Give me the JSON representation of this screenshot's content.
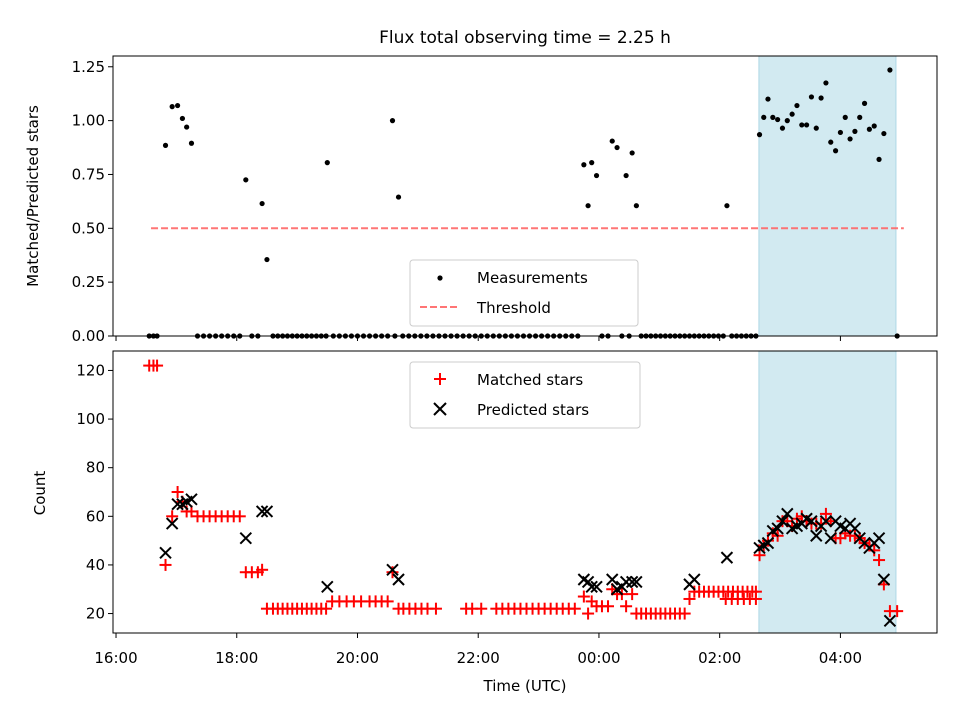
{
  "title": "Flux total observing time = 2.25 h",
  "x_ticks": [
    "16:00",
    "18:00",
    "20:00",
    "22:00",
    "00:00",
    "02:00",
    "04:00"
  ],
  "xlabel": "Time (UTC)",
  "chart_data": [
    {
      "type": "scatter",
      "panel": "top",
      "ylabel": "Matched/Predicted stars",
      "ylim": [
        0,
        1.3
      ],
      "y_ticks": [
        "0.00",
        "0.25",
        "0.50",
        "0.75",
        "1.00",
        "1.25"
      ],
      "x_unit": "hours since 16:00 UTC",
      "xlim": [
        -0.05,
        13.6
      ],
      "highlight_span": [
        10.65,
        12.92
      ],
      "threshold": {
        "value": 0.5,
        "x_range": [
          0.58,
          13.05
        ]
      },
      "legend": {
        "measurements": "Measurements",
        "threshold": "Threshold",
        "placement": "lower-center"
      },
      "measurements": [
        [
          0.55,
          0
        ],
        [
          0.62,
          0
        ],
        [
          0.68,
          0
        ],
        [
          0.82,
          0.885
        ],
        [
          0.93,
          1.065
        ],
        [
          1.02,
          1.07
        ],
        [
          1.1,
          1.01
        ],
        [
          1.17,
          0.97
        ],
        [
          1.25,
          0.895
        ],
        [
          1.35,
          0
        ],
        [
          1.45,
          0
        ],
        [
          1.55,
          0
        ],
        [
          1.65,
          0
        ],
        [
          1.75,
          0
        ],
        [
          1.85,
          0
        ],
        [
          1.95,
          0
        ],
        [
          2.05,
          0
        ],
        [
          2.15,
          0.725
        ],
        [
          2.25,
          0
        ],
        [
          2.35,
          0
        ],
        [
          2.42,
          0.615
        ],
        [
          2.5,
          0.355
        ],
        [
          2.6,
          0
        ],
        [
          2.68,
          0
        ],
        [
          2.76,
          0
        ],
        [
          2.84,
          0
        ],
        [
          2.92,
          0
        ],
        [
          3.0,
          0
        ],
        [
          3.08,
          0
        ],
        [
          3.16,
          0
        ],
        [
          3.24,
          0
        ],
        [
          3.32,
          0
        ],
        [
          3.4,
          0
        ],
        [
          3.48,
          0
        ],
        [
          3.5,
          0.805
        ],
        [
          3.6,
          0
        ],
        [
          3.7,
          0
        ],
        [
          3.8,
          0
        ],
        [
          3.9,
          0
        ],
        [
          4.0,
          0
        ],
        [
          4.1,
          0
        ],
        [
          4.2,
          0
        ],
        [
          4.3,
          0
        ],
        [
          4.4,
          0
        ],
        [
          4.5,
          0
        ],
        [
          4.58,
          1.0
        ],
        [
          4.62,
          0
        ],
        [
          4.68,
          0.645
        ],
        [
          4.75,
          0
        ],
        [
          4.85,
          0
        ],
        [
          4.95,
          0
        ],
        [
          5.05,
          0
        ],
        [
          5.15,
          0
        ],
        [
          5.25,
          0
        ],
        [
          5.35,
          0
        ],
        [
          5.45,
          0
        ],
        [
          5.55,
          0
        ],
        [
          5.65,
          0
        ],
        [
          5.75,
          0
        ],
        [
          5.85,
          0
        ],
        [
          5.95,
          0
        ],
        [
          6.05,
          0
        ],
        [
          6.15,
          0
        ],
        [
          6.25,
          0
        ],
        [
          6.35,
          0
        ],
        [
          6.45,
          0
        ],
        [
          6.55,
          0
        ],
        [
          6.65,
          0
        ],
        [
          6.75,
          0
        ],
        [
          6.85,
          0
        ],
        [
          6.95,
          0
        ],
        [
          7.05,
          0
        ],
        [
          7.15,
          0
        ],
        [
          7.25,
          0
        ],
        [
          7.35,
          0
        ],
        [
          7.45,
          0
        ],
        [
          7.55,
          0
        ],
        [
          7.65,
          0
        ],
        [
          7.75,
          0.795
        ],
        [
          7.82,
          0.605
        ],
        [
          7.88,
          0.805
        ],
        [
          7.96,
          0.745
        ],
        [
          8.05,
          0
        ],
        [
          8.15,
          0
        ],
        [
          8.22,
          0.905
        ],
        [
          8.3,
          0.875
        ],
        [
          8.38,
          0
        ],
        [
          8.45,
          0.745
        ],
        [
          8.5,
          0
        ],
        [
          8.55,
          0.85
        ],
        [
          8.62,
          0.605
        ],
        [
          8.7,
          0
        ],
        [
          8.78,
          0
        ],
        [
          8.86,
          0
        ],
        [
          8.94,
          0
        ],
        [
          9.02,
          0
        ],
        [
          9.1,
          0
        ],
        [
          9.18,
          0
        ],
        [
          9.26,
          0
        ],
        [
          9.34,
          0
        ],
        [
          9.42,
          0
        ],
        [
          9.5,
          0
        ],
        [
          9.58,
          0
        ],
        [
          9.66,
          0
        ],
        [
          9.74,
          0
        ],
        [
          9.82,
          0
        ],
        [
          9.9,
          0
        ],
        [
          9.98,
          0
        ],
        [
          10.06,
          0
        ],
        [
          10.12,
          0.605
        ],
        [
          10.2,
          0
        ],
        [
          10.28,
          0
        ],
        [
          10.36,
          0
        ],
        [
          10.44,
          0
        ],
        [
          10.52,
          0
        ],
        [
          10.6,
          0
        ],
        [
          10.66,
          0.935
        ],
        [
          10.73,
          1.015
        ],
        [
          10.8,
          1.1
        ],
        [
          10.88,
          1.015
        ],
        [
          10.96,
          1.005
        ],
        [
          11.04,
          0.965
        ],
        [
          11.12,
          1.0
        ],
        [
          11.2,
          1.03
        ],
        [
          11.28,
          1.07
        ],
        [
          11.36,
          0.98
        ],
        [
          11.44,
          0.98
        ],
        [
          11.52,
          1.11
        ],
        [
          11.6,
          0.965
        ],
        [
          11.68,
          1.105
        ],
        [
          11.76,
          1.175
        ],
        [
          11.84,
          0.9
        ],
        [
          11.92,
          0.86
        ],
        [
          12.0,
          0.945
        ],
        [
          12.08,
          1.015
        ],
        [
          12.16,
          0.915
        ],
        [
          12.24,
          0.95
        ],
        [
          12.32,
          1.015
        ],
        [
          12.4,
          1.08
        ],
        [
          12.48,
          0.96
        ],
        [
          12.56,
          0.975
        ],
        [
          12.64,
          0.82
        ],
        [
          12.72,
          0.94
        ],
        [
          12.82,
          1.235
        ],
        [
          12.94,
          0
        ]
      ]
    },
    {
      "type": "scatter",
      "panel": "bottom",
      "ylabel": "Count",
      "ylim": [
        12,
        128
      ],
      "y_ticks": [
        "20",
        "40",
        "60",
        "80",
        "100",
        "120"
      ],
      "highlight_span": [
        10.65,
        12.92
      ],
      "legend": {
        "matched": "Matched stars",
        "predicted": "Predicted stars",
        "placement": "upper-center"
      },
      "matched": [
        [
          0.55,
          122
        ],
        [
          0.62,
          122
        ],
        [
          0.68,
          122
        ],
        [
          0.82,
          40
        ],
        [
          0.93,
          60
        ],
        [
          1.02,
          70
        ],
        [
          1.1,
          66
        ],
        [
          1.17,
          62
        ],
        [
          1.25,
          62
        ],
        [
          1.35,
          60
        ],
        [
          1.45,
          60
        ],
        [
          1.55,
          60
        ],
        [
          1.65,
          60
        ],
        [
          1.75,
          60
        ],
        [
          1.85,
          60
        ],
        [
          1.95,
          60
        ],
        [
          2.05,
          60
        ],
        [
          2.15,
          37
        ],
        [
          2.25,
          37
        ],
        [
          2.35,
          37
        ],
        [
          2.42,
          38
        ],
        [
          2.5,
          22
        ],
        [
          2.6,
          22
        ],
        [
          2.68,
          22
        ],
        [
          2.76,
          22
        ],
        [
          2.84,
          22
        ],
        [
          2.92,
          22
        ],
        [
          3.0,
          22
        ],
        [
          3.08,
          22
        ],
        [
          3.16,
          22
        ],
        [
          3.24,
          22
        ],
        [
          3.32,
          22
        ],
        [
          3.4,
          22
        ],
        [
          3.48,
          22
        ],
        [
          3.58,
          25
        ],
        [
          3.7,
          25
        ],
        [
          3.82,
          25
        ],
        [
          3.94,
          25
        ],
        [
          4.06,
          25
        ],
        [
          4.2,
          25
        ],
        [
          4.3,
          25
        ],
        [
          4.4,
          25
        ],
        [
          4.5,
          25
        ],
        [
          4.58,
          37
        ],
        [
          4.68,
          22
        ],
        [
          4.76,
          22
        ],
        [
          4.86,
          22
        ],
        [
          4.96,
          22
        ],
        [
          5.06,
          22
        ],
        [
          5.16,
          22
        ],
        [
          5.3,
          22
        ],
        [
          5.8,
          22
        ],
        [
          5.9,
          22
        ],
        [
          6.05,
          22
        ],
        [
          6.3,
          22
        ],
        [
          6.4,
          22
        ],
        [
          6.5,
          22
        ],
        [
          6.6,
          22
        ],
        [
          6.7,
          22
        ],
        [
          6.8,
          22
        ],
        [
          6.9,
          22
        ],
        [
          7.0,
          22
        ],
        [
          7.1,
          22
        ],
        [
          7.2,
          22
        ],
        [
          7.3,
          22
        ],
        [
          7.4,
          22
        ],
        [
          7.5,
          22
        ],
        [
          7.6,
          22
        ],
        [
          7.75,
          27
        ],
        [
          7.82,
          20
        ],
        [
          7.88,
          25
        ],
        [
          7.96,
          23
        ],
        [
          8.05,
          23
        ],
        [
          8.15,
          23
        ],
        [
          8.22,
          30
        ],
        [
          8.3,
          28
        ],
        [
          8.38,
          28
        ],
        [
          8.45,
          23
        ],
        [
          8.55,
          28
        ],
        [
          8.62,
          20
        ],
        [
          8.7,
          20
        ],
        [
          8.78,
          20
        ],
        [
          8.86,
          20
        ],
        [
          8.94,
          20
        ],
        [
          9.02,
          20
        ],
        [
          9.1,
          20
        ],
        [
          9.18,
          20
        ],
        [
          9.26,
          20
        ],
        [
          9.34,
          20
        ],
        [
          9.42,
          20
        ],
        [
          9.5,
          26
        ],
        [
          9.58,
          29
        ],
        [
          9.66,
          29
        ],
        [
          9.74,
          29
        ],
        [
          9.82,
          29
        ],
        [
          9.9,
          29
        ],
        [
          9.98,
          29
        ],
        [
          10.06,
          29
        ],
        [
          10.14,
          29
        ],
        [
          10.22,
          29
        ],
        [
          10.3,
          29
        ],
        [
          10.38,
          29
        ],
        [
          10.46,
          29
        ],
        [
          10.54,
          29
        ],
        [
          10.6,
          29
        ],
        [
          10.1,
          26
        ],
        [
          10.2,
          26
        ],
        [
          10.3,
          26
        ],
        [
          10.4,
          26
        ],
        [
          10.5,
          26
        ],
        [
          10.6,
          26
        ],
        [
          10.66,
          44
        ],
        [
          10.73,
          48
        ],
        [
          10.8,
          50
        ],
        [
          10.88,
          53
        ],
        [
          10.96,
          52
        ],
        [
          11.04,
          58
        ],
        [
          11.12,
          58
        ],
        [
          11.2,
          56
        ],
        [
          11.28,
          59
        ],
        [
          11.36,
          60
        ],
        [
          11.44,
          58
        ],
        [
          11.52,
          57
        ],
        [
          11.6,
          57
        ],
        [
          11.68,
          57
        ],
        [
          11.76,
          61
        ],
        [
          11.84,
          58
        ],
        [
          11.92,
          51
        ],
        [
          12.0,
          51
        ],
        [
          12.08,
          53
        ],
        [
          12.16,
          52
        ],
        [
          12.24,
          52
        ],
        [
          12.32,
          51
        ],
        [
          12.4,
          49
        ],
        [
          12.48,
          48
        ],
        [
          12.56,
          46
        ],
        [
          12.64,
          42
        ],
        [
          12.72,
          32
        ],
        [
          12.82,
          21
        ],
        [
          12.94,
          21
        ]
      ],
      "predicted": [
        [
          0.82,
          45
        ],
        [
          0.93,
          57
        ],
        [
          1.02,
          65
        ],
        [
          1.1,
          65
        ],
        [
          1.17,
          66
        ],
        [
          1.25,
          67
        ],
        [
          2.15,
          51
        ],
        [
          2.42,
          62
        ],
        [
          2.5,
          62
        ],
        [
          3.5,
          31
        ],
        [
          4.58,
          38
        ],
        [
          4.68,
          34
        ],
        [
          7.75,
          34
        ],
        [
          7.82,
          33
        ],
        [
          7.88,
          31
        ],
        [
          7.96,
          31
        ],
        [
          8.22,
          34
        ],
        [
          8.3,
          30
        ],
        [
          8.38,
          31
        ],
        [
          8.45,
          33
        ],
        [
          8.55,
          33
        ],
        [
          8.62,
          33
        ],
        [
          9.5,
          32
        ],
        [
          9.58,
          34
        ],
        [
          10.12,
          43
        ],
        [
          10.66,
          47
        ],
        [
          10.73,
          48
        ],
        [
          10.8,
          49
        ],
        [
          10.88,
          54
        ],
        [
          10.96,
          55
        ],
        [
          11.04,
          58
        ],
        [
          11.12,
          61
        ],
        [
          11.2,
          55
        ],
        [
          11.28,
          56
        ],
        [
          11.36,
          57
        ],
        [
          11.44,
          59
        ],
        [
          11.52,
          58
        ],
        [
          11.6,
          52
        ],
        [
          11.68,
          56
        ],
        [
          11.76,
          58
        ],
        [
          11.84,
          51
        ],
        [
          11.92,
          58
        ],
        [
          12.0,
          56
        ],
        [
          12.08,
          55
        ],
        [
          12.16,
          57
        ],
        [
          12.24,
          55
        ],
        [
          12.32,
          51
        ],
        [
          12.4,
          49
        ],
        [
          12.48,
          47
        ],
        [
          12.56,
          49
        ],
        [
          12.64,
          51
        ],
        [
          12.72,
          34
        ],
        [
          12.82,
          17
        ]
      ]
    }
  ]
}
